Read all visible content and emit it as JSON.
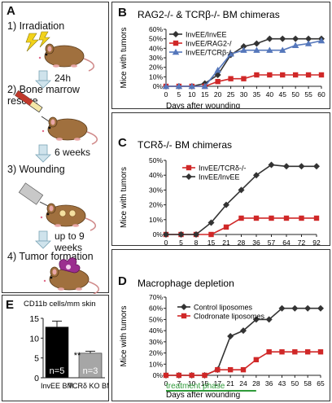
{
  "panel_a": {
    "label": "A",
    "steps": [
      "1) Irradiation",
      "2) Bone marrow rescue",
      "3) Wounding",
      "4) Tumor formation"
    ],
    "intervals": [
      "24h",
      "6 weeks",
      "up to 9",
      "weeks"
    ]
  },
  "panel_e": {
    "label": "E",
    "title": "CD11b cells/mm skin",
    "significance": "**",
    "bar_labels": [
      "n=5",
      "n=3"
    ],
    "chart_data": {
      "type": "bar",
      "categories": [
        "InvEE BM",
        "TCRδ KO BM"
      ],
      "values": [
        12.8,
        6.2
      ],
      "errors": [
        1.5,
        0.5
      ],
      "colors": [
        "#000000",
        "#a6a6a6"
      ],
      "ylim": [
        0,
        15
      ],
      "yticks": [
        0,
        5,
        10,
        15
      ]
    }
  },
  "panel_b": {
    "label": "B",
    "title": "RAG2-/- & TCRβ-/- BM chimeras",
    "chart_data": {
      "type": "line",
      "ylabel": "Mice with tumors",
      "xlabel": "Days after wounding",
      "x": [
        0,
        5,
        10,
        15,
        20,
        25,
        30,
        35,
        40,
        45,
        50,
        55,
        60
      ],
      "x_ticks": [
        "0",
        "5",
        "10",
        "15",
        "20",
        "25",
        "30",
        "35",
        "40",
        "45",
        "50",
        "55",
        "60"
      ],
      "ylim": [
        0,
        60
      ],
      "y_ticks": [
        "0%",
        "10%",
        "20%",
        "30%",
        "40%",
        "50%",
        "60%"
      ],
      "legend": "top-left",
      "series": [
        {
          "name": "InvEE/InvEE",
          "color": "#333333",
          "marker": "diamond",
          "values": [
            0,
            0,
            0,
            3,
            12,
            33,
            42,
            45,
            50,
            50,
            50,
            50,
            50
          ]
        },
        {
          "name": "InvEE/RAG2-/",
          "color": "#d02828",
          "marker": "square",
          "values": [
            0,
            0,
            0,
            0,
            5,
            8,
            8,
            12,
            12,
            12,
            12,
            12,
            12
          ]
        },
        {
          "name": "InvEE/TCRβ-/-",
          "color": "#5577bb",
          "marker": "triangle",
          "values": [
            0,
            0,
            0,
            0,
            17,
            34,
            38,
            38,
            38,
            38,
            43,
            45,
            48
          ]
        }
      ]
    }
  },
  "panel_c": {
    "label": "C",
    "title": "TCRδ-/- BM chimeras",
    "chart_data": {
      "type": "line",
      "ylabel": "Mice with tumors",
      "xlabel": "Days after wounding",
      "x_ticks": [
        "0",
        "5",
        "8",
        "15",
        "21",
        "28",
        "36",
        "57",
        "64",
        "72",
        "92"
      ],
      "ylim": [
        0,
        50
      ],
      "y_ticks": [
        "0%",
        "10%",
        "20%",
        "30%",
        "40%",
        "50%"
      ],
      "legend": "top-left",
      "series": [
        {
          "name": "InvEE/TCRδ-/-",
          "color": "#d02828",
          "marker": "square",
          "values": [
            0,
            0,
            0,
            0,
            5,
            11,
            11,
            11,
            11,
            11,
            11
          ]
        },
        {
          "name": "InvEE/InvEE",
          "color": "#333333",
          "marker": "diamond",
          "values": [
            0,
            0,
            0,
            8,
            20,
            30,
            40,
            47,
            46,
            46,
            46
          ]
        }
      ]
    }
  },
  "panel_d": {
    "label": "D",
    "title": "Macrophage depletion",
    "treatment_label": "treatment phase",
    "chart_data": {
      "type": "line",
      "ylabel": "Mice with tumors",
      "xlabel": "Days after wounding",
      "x_ticks": [
        "0",
        "7",
        "10",
        "15",
        "17",
        "21",
        "24",
        "28",
        "36",
        "43",
        "50",
        "58",
        "65"
      ],
      "ylim": [
        0,
        70
      ],
      "y_ticks": [
        "0%",
        "10%",
        "20%",
        "30%",
        "40%",
        "50%",
        "60%",
        "70%"
      ],
      "legend": "top-left",
      "series": [
        {
          "name": "Control liposomes",
          "color": "#333333",
          "marker": "diamond",
          "values": [
            0,
            0,
            0,
            0,
            5,
            35,
            40,
            50,
            50,
            60,
            60,
            60,
            60
          ]
        },
        {
          "name": "Clodronate liposomes",
          "color": "#d02828",
          "marker": "square",
          "values": [
            0,
            0,
            0,
            0,
            5,
            5,
            5,
            14,
            21,
            21,
            21,
            21,
            21
          ]
        }
      ]
    }
  }
}
